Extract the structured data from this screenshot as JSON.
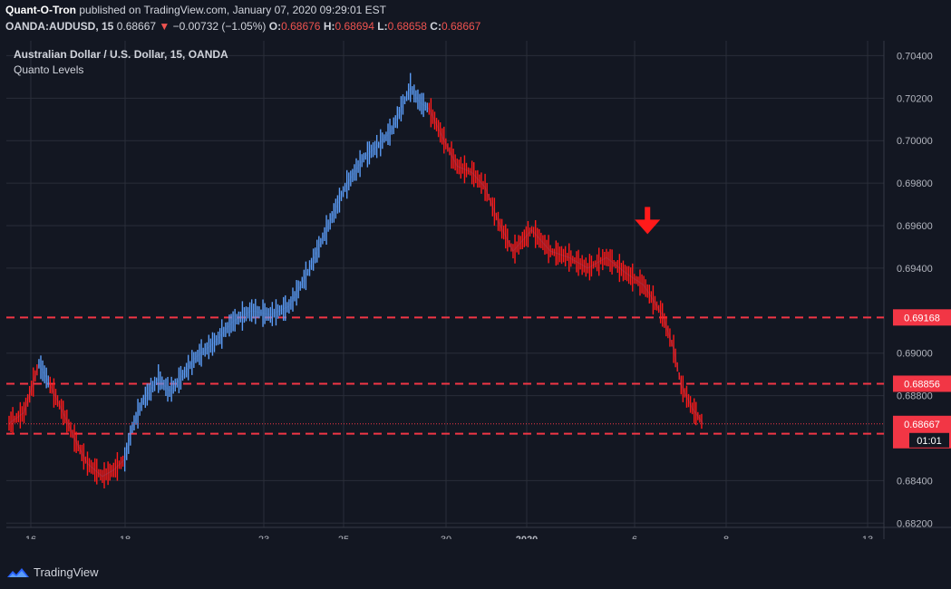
{
  "header": {
    "author": "Quant-O-Tron",
    "published_text": "published on TradingView.com, January 07, 2020 09:29:01 EST",
    "symbol": "OANDA:AUDUSD, 15",
    "last": "0.68667",
    "change": "−0.00732 (−1.05%)",
    "o_label": "O:",
    "o": "0.68676",
    "h_label": "H:",
    "h": "0.68694",
    "l_label": "L:",
    "l": "0.68658",
    "c_label": "C:",
    "c": "0.68667"
  },
  "legend": {
    "title": "Australian Dollar / U.S. Dollar, 15, OANDA",
    "indicator": "Quanto Levels"
  },
  "brand": {
    "name": "TradingView"
  },
  "colors": {
    "background": "#131722",
    "grid": "#2a2e39",
    "up": "#5b9cf6",
    "down": "#ff1a1a",
    "level": "#f23645",
    "arrow": "#ff1a1a"
  },
  "chart_data": {
    "type": "line",
    "title": "Australian Dollar / U.S. Dollar, 15, OANDA",
    "x_ticks": [
      "16",
      "18",
      "23",
      "25",
      "30",
      "2020",
      "6",
      "8",
      "13"
    ],
    "y_ticks": [
      "0.70400",
      "0.70200",
      "0.70000",
      "0.69800",
      "0.69600",
      "0.69400",
      "0.69000",
      "0.68800",
      "0.68400",
      "0.68200"
    ],
    "ylim": [
      0.6818,
      0.7047
    ],
    "grid": true,
    "series": [
      {
        "name": "AUDUSD",
        "x_index": [
          0,
          8,
          16,
          22,
          30,
          36,
          42,
          50,
          56,
          62,
          66,
          72,
          80,
          86,
          90,
          100,
          110,
          120,
          130,
          140,
          150,
          160,
          170,
          180,
          190,
          198,
          205,
          210,
          215,
          220,
          225,
          232,
          240,
          248,
          255,
          262,
          270,
          280,
          290,
          300,
          310,
          320,
          330,
          340,
          350,
          356,
          360,
          366,
          372
        ],
        "close": [
          0.6867,
          0.6872,
          0.6895,
          0.6885,
          0.687,
          0.6858,
          0.6848,
          0.6842,
          0.6845,
          0.685,
          0.6865,
          0.6878,
          0.6888,
          0.6882,
          0.6886,
          0.6898,
          0.6905,
          0.6915,
          0.692,
          0.6918,
          0.6922,
          0.6938,
          0.6958,
          0.6978,
          0.6992,
          0.6998,
          0.7005,
          0.7015,
          0.7025,
          0.7018,
          0.7015,
          0.7002,
          0.6988,
          0.6985,
          0.6978,
          0.6962,
          0.6948,
          0.6958,
          0.6948,
          0.6945,
          0.694,
          0.6945,
          0.6938,
          0.6932,
          0.6918,
          0.6902,
          0.6885,
          0.6874,
          0.68667
        ]
      }
    ],
    "levels": [
      {
        "value": 0.69168,
        "label": "0.69168"
      },
      {
        "value": 0.68856,
        "label": "0.68856"
      },
      {
        "value": 0.68621,
        "label": "0.68621"
      }
    ],
    "last_price": {
      "value": 0.68667,
      "label": "0.68667",
      "countdown": "01:01"
    },
    "annotations": [
      {
        "type": "down-arrow",
        "x_index": 342,
        "value": 0.6956
      }
    ]
  }
}
